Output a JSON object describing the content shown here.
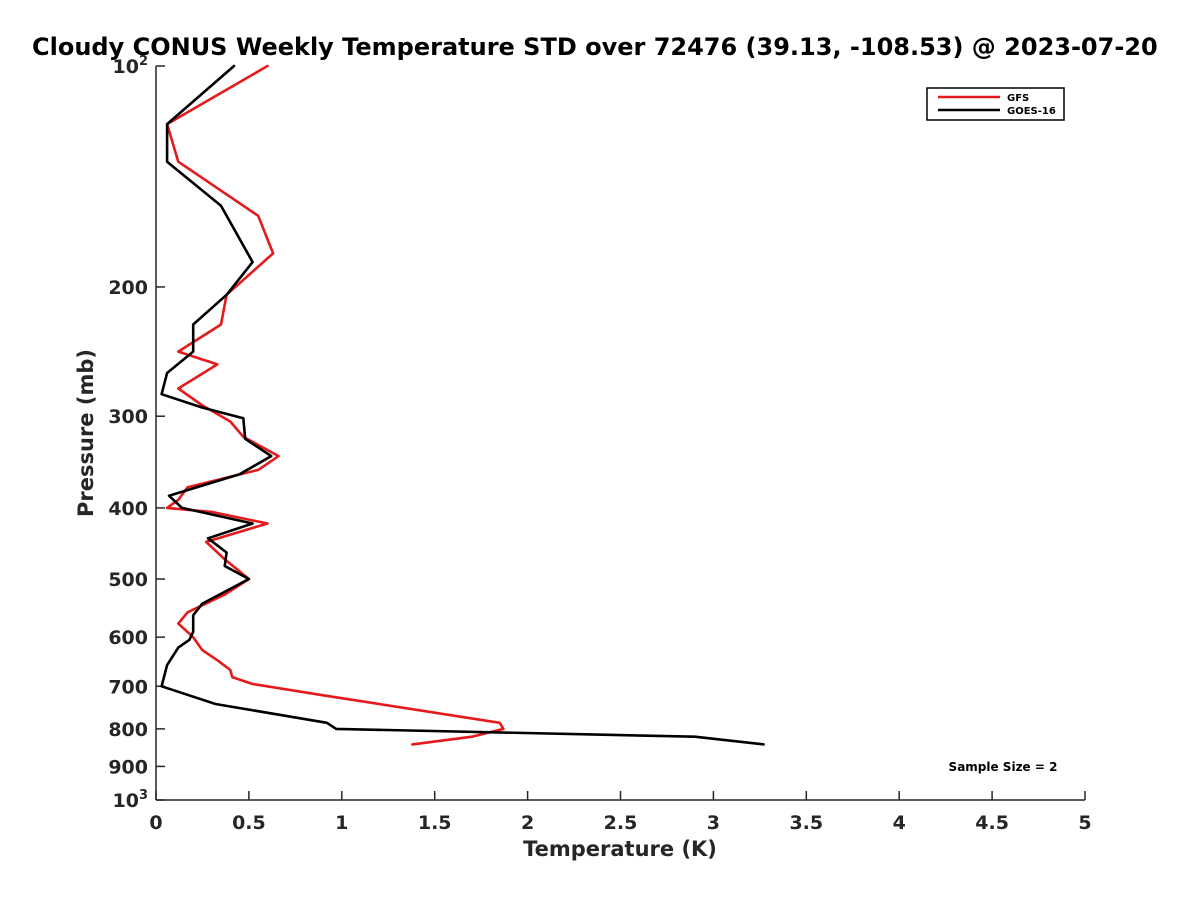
{
  "chart_data": {
    "type": "line",
    "title": "Cloudy CONUS Weekly Temperature STD over 72476 (39.13, -108.53) @ 2023-07-20",
    "xlabel": "Temperature (K)",
    "ylabel": "Pressure (mb)",
    "xlim": [
      0,
      5
    ],
    "ylim": [
      100,
      1000
    ],
    "y_scale": "log",
    "y_reversed": true,
    "x_ticks": [
      "0",
      "0.5",
      "1",
      "1.5",
      "2",
      "2.5",
      "3",
      "3.5",
      "4",
      "4.5",
      "5"
    ],
    "y_ticks": [
      {
        "value": 100,
        "base": "10",
        "exp": "2"
      },
      {
        "value": 200,
        "label": "200"
      },
      {
        "value": 300,
        "label": "300"
      },
      {
        "value": 400,
        "label": "400"
      },
      {
        "value": 500,
        "label": "500"
      },
      {
        "value": 600,
        "label": "600"
      },
      {
        "value": 700,
        "label": "700"
      },
      {
        "value": 800,
        "label": "800"
      },
      {
        "value": 900,
        "label": "900"
      },
      {
        "value": 1000,
        "base": "10",
        "exp": "3"
      }
    ],
    "grid": false,
    "legend_position": "top-right",
    "annotation": "Sample Size = 2",
    "series": [
      {
        "name": "GFS",
        "color": "#e41a1c",
        "points": [
          [
            0.6,
            100
          ],
          [
            0.06,
            120
          ],
          [
            0.12,
            135
          ],
          [
            0.55,
            160
          ],
          [
            0.63,
            180
          ],
          [
            0.38,
            205
          ],
          [
            0.35,
            225
          ],
          [
            0.12,
            245
          ],
          [
            0.33,
            255
          ],
          [
            0.12,
            275
          ],
          [
            0.25,
            290
          ],
          [
            0.4,
            305
          ],
          [
            0.47,
            320
          ],
          [
            0.66,
            340
          ],
          [
            0.55,
            355
          ],
          [
            0.17,
            375
          ],
          [
            0.12,
            390
          ],
          [
            0.06,
            400
          ],
          [
            0.3,
            405
          ],
          [
            0.6,
            420
          ],
          [
            0.27,
            445
          ],
          [
            0.37,
            470
          ],
          [
            0.5,
            500
          ],
          [
            0.37,
            525
          ],
          [
            0.17,
            555
          ],
          [
            0.12,
            575
          ],
          [
            0.2,
            600
          ],
          [
            0.25,
            625
          ],
          [
            0.33,
            645
          ],
          [
            0.4,
            665
          ],
          [
            0.41,
            680
          ],
          [
            0.52,
            695
          ],
          [
            0.9,
            720
          ],
          [
            1.85,
            785
          ],
          [
            1.87,
            800
          ],
          [
            1.7,
            820
          ],
          [
            1.38,
            840
          ]
        ]
      },
      {
        "name": "GOES-16",
        "color": "#000000",
        "points": [
          [
            0.42,
            100
          ],
          [
            0.06,
            120
          ],
          [
            0.06,
            135
          ],
          [
            0.35,
            155
          ],
          [
            0.52,
            185
          ],
          [
            0.38,
            205
          ],
          [
            0.2,
            225
          ],
          [
            0.2,
            245
          ],
          [
            0.06,
            262
          ],
          [
            0.03,
            280
          ],
          [
            0.25,
            292
          ],
          [
            0.47,
            302
          ],
          [
            0.48,
            322
          ],
          [
            0.62,
            340
          ],
          [
            0.45,
            360
          ],
          [
            0.07,
            385
          ],
          [
            0.14,
            400
          ],
          [
            0.52,
            420
          ],
          [
            0.28,
            440
          ],
          [
            0.38,
            460
          ],
          [
            0.37,
            480
          ],
          [
            0.5,
            500
          ],
          [
            0.25,
            540
          ],
          [
            0.2,
            560
          ],
          [
            0.2,
            590
          ],
          [
            0.18,
            605
          ],
          [
            0.12,
            620
          ],
          [
            0.06,
            655
          ],
          [
            0.03,
            700
          ],
          [
            0.32,
            740
          ],
          [
            0.92,
            785
          ],
          [
            0.97,
            800
          ],
          [
            2.9,
            820
          ],
          [
            3.27,
            840
          ]
        ]
      }
    ]
  }
}
